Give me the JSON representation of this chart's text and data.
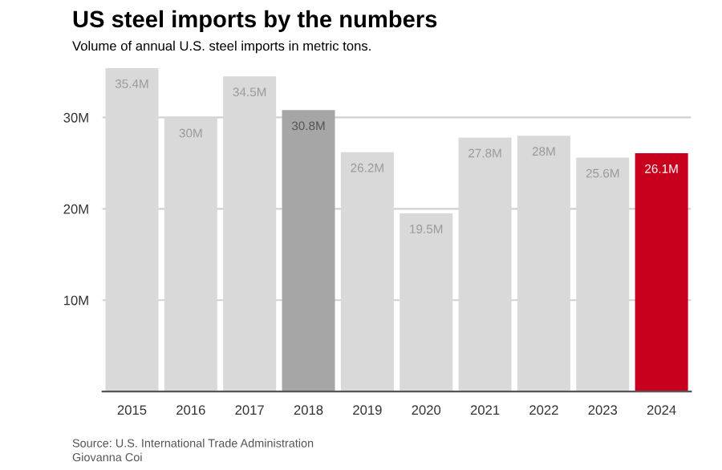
{
  "chart_data": {
    "type": "bar",
    "title": "US steel imports by the numbers",
    "subtitle": "Volume of annual U.S. steel imports in metric tons.",
    "categories": [
      "2015",
      "2016",
      "2017",
      "2018",
      "2019",
      "2020",
      "2021",
      "2022",
      "2023",
      "2024"
    ],
    "values": [
      35.4,
      30,
      34.5,
      30.8,
      26.2,
      19.5,
      27.8,
      28,
      25.6,
      26.1
    ],
    "colors": [
      "#d9d9d9",
      "#d9d9d9",
      "#d9d9d9",
      "#a6a6a6",
      "#d9d9d9",
      "#d9d9d9",
      "#d9d9d9",
      "#d9d9d9",
      "#d9d9d9",
      "#c8001e"
    ],
    "value_labels": [
      "35.4M",
      "30M",
      "34.5M",
      "30.8M",
      "26.2M",
      "19.5M",
      "27.8M",
      "28M",
      "25.6M",
      "26.1M"
    ],
    "ylim": [
      0,
      35.4
    ],
    "yticks": [
      {
        "value": 10,
        "label": "10M"
      },
      {
        "value": 20,
        "label": "20M"
      },
      {
        "value": 30,
        "label": "30M"
      }
    ],
    "grid": "y",
    "annotations": [
      "Source: U.S. International Trade Administration",
      "Giovanna Coi"
    ]
  }
}
